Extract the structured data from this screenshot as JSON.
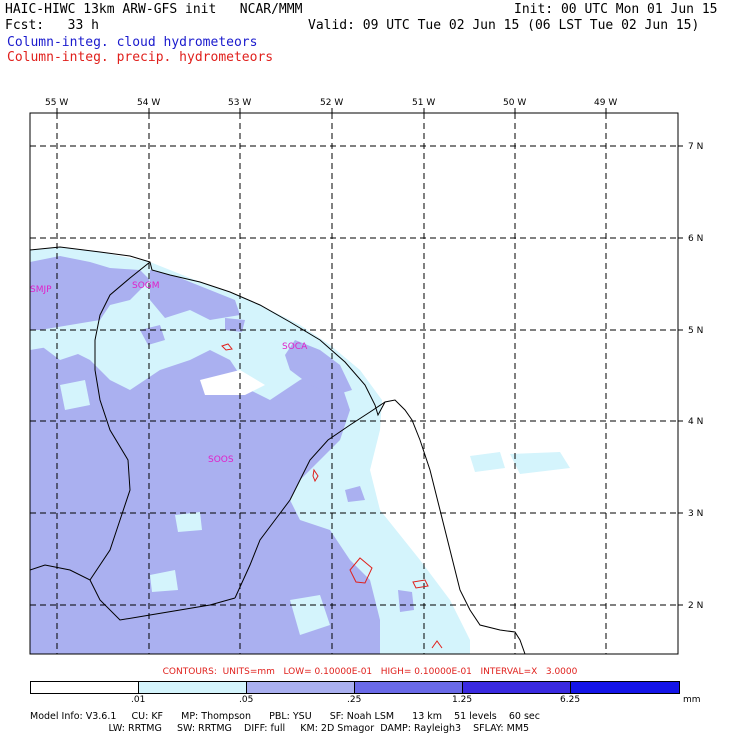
{
  "header": {
    "title": "HAIC-HIWC 13km ARW-GFS init   NCAR/MMM",
    "init": "Init: 00 UTC Mon 01 Jun 15",
    "fcst": "Fcst:   33 h",
    "valid": "Valid: 09 UTC Tue 02 Jun 15 (06 LST Tue 02 Jun 15)",
    "field_cloud": "Column-integ. cloud hydrometeors",
    "field_precip": "Column-integ. precip. hydrometeors"
  },
  "map": {
    "lon_labels": [
      "55 W",
      "54 W",
      "53 W",
      "52 W",
      "51 W",
      "50 W",
      "49 W"
    ],
    "lat_labels": [
      "7 N",
      "6 N",
      "5 N",
      "4 N",
      "3 N",
      "2 N"
    ],
    "stations": [
      "SMJP",
      "SOGM",
      "SOCA",
      "SOOS"
    ]
  },
  "contours": "CONTOURS:  UNITS=mm   LOW= 0.10000E-01   HIGH= 0.10000E-01   INTERVAL=X   3.0000",
  "colorbar": {
    "labels": [
      ".01",
      ".05",
      ".25",
      "1.25",
      "6.25"
    ],
    "unit": "mm",
    "colors": [
      "#ffffff",
      "#d4f4fc",
      "#aab0f0",
      "#6a6ae8",
      "#3a2ae0",
      "#1414e8"
    ]
  },
  "footer": {
    "line1": "Model Info: V3.6.1     CU: KF      MP: Thompson      PBL: YSU      SF: Noah LSM      13 km    51 levels    60 sec",
    "line2": "                          LW: RRTMG     SW: RRTMG    DIFF: full     KM: 2D Smagor  DAMP: Rayleigh3    SFLAY: MM5"
  }
}
